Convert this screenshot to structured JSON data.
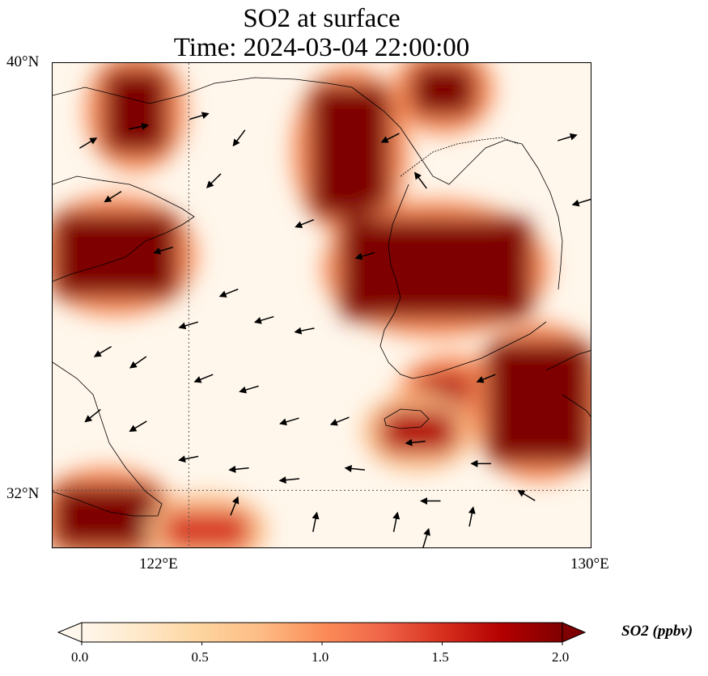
{
  "title": {
    "line1": "SO2 at surface",
    "line2": "Time: 2024-03-04 22:00:00"
  },
  "map": {
    "lon_range": [
      119.3,
      130
    ],
    "lat_range": [
      30.9,
      40
    ],
    "lat_ticks": [
      {
        "value": 40,
        "label": "40°N"
      },
      {
        "value": 32,
        "label": "32°N"
      }
    ],
    "lon_ticks": [
      {
        "value": 122,
        "label": "122°E"
      },
      {
        "value": 130,
        "label": "130°E"
      }
    ],
    "gridlines": {
      "lon": [
        122
      ],
      "lat": [
        32
      ],
      "style": "dotted"
    },
    "colormap": "OrRd"
  },
  "chart_data": {
    "type": "heatmap",
    "variable": "SO2",
    "units": "ppbv",
    "vmin": 0.0,
    "vmax": 2.0,
    "colorbar_ticks": [
      0.0,
      0.5,
      1.0,
      1.5,
      2.0
    ],
    "colorbar_label": "SO2 (ppbv)",
    "colorbar_extend": "both",
    "high_plumes": [
      {
        "region": "northwest",
        "lon": [
          120.3,
          121.6
        ],
        "lat": [
          38.3,
          39.9
        ],
        "value": 2.0
      },
      {
        "region": "west coast band",
        "lon": [
          119.3,
          121.8
        ],
        "lat": [
          35.6,
          37.2
        ],
        "value": 2.0
      },
      {
        "region": "north center",
        "lon": [
          124.4,
          126.0
        ],
        "lat": [
          37.1,
          39.6
        ],
        "value": 2.0
      },
      {
        "region": "northeast",
        "lon": [
          126.4,
          127.7
        ],
        "lat": [
          39.0,
          40.0
        ],
        "value": 2.0
      },
      {
        "region": "central band",
        "lon": [
          125.0,
          128.8
        ],
        "lat": [
          35.2,
          37.1
        ],
        "value": 2.0
      },
      {
        "region": "south center",
        "lon": [
          126.5,
          127.9
        ],
        "lat": [
          33.4,
          34.2
        ],
        "value": 1.8
      },
      {
        "region": "east",
        "lon": [
          127.9,
          130.0
        ],
        "lat": [
          32.5,
          34.8
        ],
        "value": 2.0
      },
      {
        "region": "southeast island",
        "lon": [
          125.8,
          127.3
        ],
        "lat": [
          32.7,
          33.5
        ],
        "value": 1.7
      },
      {
        "region": "southwest corner",
        "lon": [
          119.3,
          121.4
        ],
        "lat": [
          30.9,
          32.1
        ],
        "value": 2.0
      },
      {
        "region": "south coast",
        "lon": [
          121.5,
          123.2
        ],
        "lat": [
          30.9,
          31.6
        ],
        "value": 1.6
      }
    ],
    "wind_vectors": [
      {
        "lon": 120.0,
        "lat": 38.5,
        "u": 1,
        "v": 0.6
      },
      {
        "lon": 121.0,
        "lat": 38.8,
        "u": 1,
        "v": 0.2
      },
      {
        "lon": 122.2,
        "lat": 39.0,
        "u": 1,
        "v": 0.3
      },
      {
        "lon": 123.0,
        "lat": 38.6,
        "u": -0.6,
        "v": -0.8
      },
      {
        "lon": 122.5,
        "lat": 37.8,
        "u": -0.7,
        "v": -0.7
      },
      {
        "lon": 120.5,
        "lat": 37.5,
        "u": -0.8,
        "v": -0.5
      },
      {
        "lon": 121.5,
        "lat": 36.5,
        "u": -1,
        "v": -0.3
      },
      {
        "lon": 122.8,
        "lat": 35.7,
        "u": -1,
        "v": -0.4
      },
      {
        "lon": 122.0,
        "lat": 35.1,
        "u": -1,
        "v": -0.3
      },
      {
        "lon": 123.5,
        "lat": 35.2,
        "u": -1,
        "v": -0.3
      },
      {
        "lon": 124.3,
        "lat": 35.0,
        "u": -1,
        "v": -0.2
      },
      {
        "lon": 120.3,
        "lat": 34.6,
        "u": -1,
        "v": -0.6
      },
      {
        "lon": 121.0,
        "lat": 34.4,
        "u": -1,
        "v": -0.7
      },
      {
        "lon": 122.3,
        "lat": 34.1,
        "u": -1,
        "v": -0.4
      },
      {
        "lon": 123.2,
        "lat": 33.9,
        "u": -1,
        "v": -0.3
      },
      {
        "lon": 124.0,
        "lat": 33.3,
        "u": -1,
        "v": -0.3
      },
      {
        "lon": 125.0,
        "lat": 33.3,
        "u": -1,
        "v": -0.4
      },
      {
        "lon": 120.1,
        "lat": 33.4,
        "u": -1,
        "v": -0.8
      },
      {
        "lon": 121.0,
        "lat": 33.2,
        "u": -1,
        "v": -0.6
      },
      {
        "lon": 122.0,
        "lat": 32.6,
        "u": -1,
        "v": -0.2
      },
      {
        "lon": 123.0,
        "lat": 32.4,
        "u": -1,
        "v": -0.1
      },
      {
        "lon": 124.0,
        "lat": 32.2,
        "u": -1,
        "v": -0.1
      },
      {
        "lon": 125.3,
        "lat": 32.4,
        "u": -1,
        "v": 0.1
      },
      {
        "lon": 126.8,
        "lat": 31.8,
        "u": -1,
        "v": 0
      },
      {
        "lon": 126.5,
        "lat": 32.9,
        "u": -1,
        "v": -0.1
      },
      {
        "lon": 127.8,
        "lat": 32.5,
        "u": -1,
        "v": 0
      },
      {
        "lon": 128.7,
        "lat": 31.9,
        "u": -1,
        "v": 0.6
      },
      {
        "lon": 127.9,
        "lat": 34.1,
        "u": -1,
        "v": -0.4
      },
      {
        "lon": 125.5,
        "lat": 36.4,
        "u": -1,
        "v": -0.3
      },
      {
        "lon": 124.3,
        "lat": 37.0,
        "u": -1,
        "v": -0.4
      },
      {
        "lon": 126.6,
        "lat": 37.8,
        "u": -0.6,
        "v": 0.8
      },
      {
        "lon": 126.0,
        "lat": 38.6,
        "u": -1,
        "v": -0.5
      },
      {
        "lon": 129.5,
        "lat": 38.6,
        "u": 1,
        "v": 0.3
      },
      {
        "lon": 129.8,
        "lat": 37.4,
        "u": -1,
        "v": -0.3
      },
      {
        "lon": 124.5,
        "lat": 31.4,
        "u": 0.2,
        "v": 1
      },
      {
        "lon": 126.1,
        "lat": 31.4,
        "u": 0.2,
        "v": 1
      },
      {
        "lon": 127.6,
        "lat": 31.5,
        "u": 0.2,
        "v": 1
      },
      {
        "lon": 122.9,
        "lat": 31.7,
        "u": 0.4,
        "v": 1
      },
      {
        "lon": 126.7,
        "lat": 31.1,
        "u": 0.3,
        "v": 1
      }
    ]
  }
}
